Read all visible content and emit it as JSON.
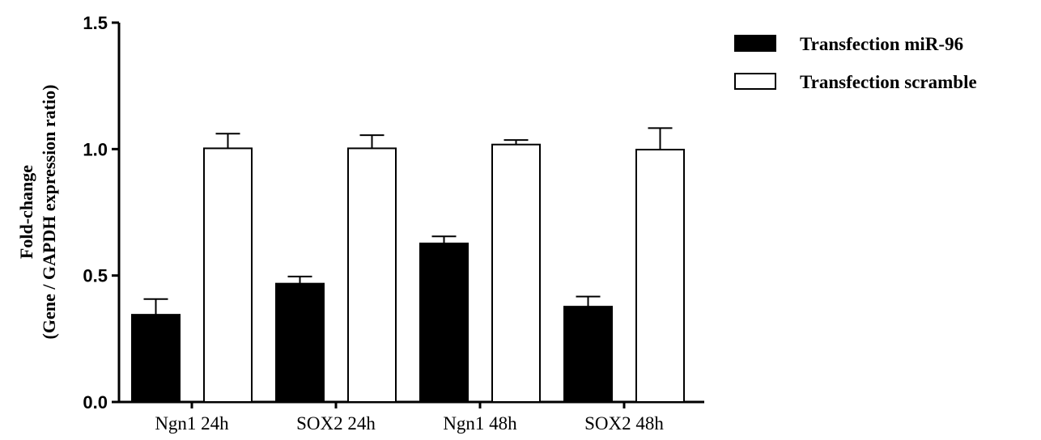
{
  "chart_data": {
    "type": "bar",
    "categories": [
      "Ngn1 24h",
      "SOX2 24h",
      "Ngn1 48h",
      "SOX2 48h"
    ],
    "series": [
      {
        "name": "Transfection miR-96",
        "color": "#000000",
        "values": [
          0.345,
          0.468,
          0.627,
          0.377
        ],
        "errors": [
          0.062,
          0.028,
          0.028,
          0.04
        ]
      },
      {
        "name": "Transfection scramble",
        "color": "#ffffff",
        "values": [
          1.003,
          1.003,
          1.018,
          0.998
        ],
        "errors": [
          0.058,
          0.052,
          0.018,
          0.085
        ]
      }
    ],
    "ylabel_line1": "Fold-change",
    "ylabel_line2": "(Gene / GAPDH expression ratio)",
    "ylim": [
      0,
      1.5
    ],
    "yticks": [
      0.0,
      0.5,
      1.0,
      1.5
    ],
    "ytick_labels": [
      "0.0",
      "0.5",
      "1.0",
      "1.5"
    ],
    "grid": false,
    "legend_position": "top-right"
  }
}
